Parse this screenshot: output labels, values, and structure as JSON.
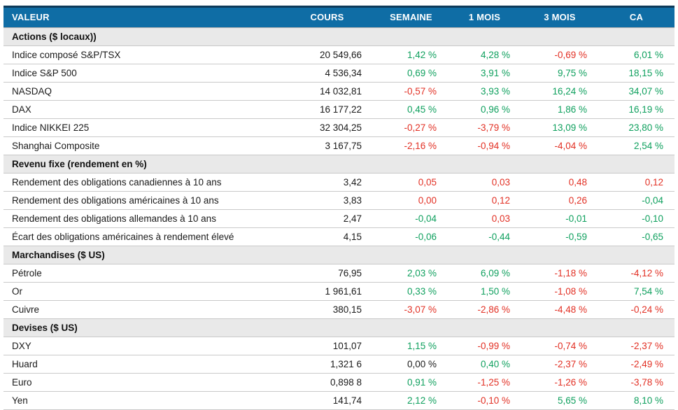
{
  "colors": {
    "header_background": "#0f6da5",
    "header_top_border": "#0d3a5a",
    "positive": "#0fa05e",
    "negative": "#e23024",
    "neutral": "#1a1a1a",
    "section_background": "#e9e9e9"
  },
  "table": {
    "columns": [
      "VALEUR",
      "COURS",
      "SEMAINE",
      "1 MOIS",
      "3 MOIS",
      "CA"
    ],
    "sections": [
      {
        "title": "Actions ($ locaux))",
        "rows": [
          {
            "label": "Indice composé S&P/TSX",
            "cours": "20 549,66",
            "cells": [
              [
                "1,42 %",
                "pos"
              ],
              [
                "4,28 %",
                "pos"
              ],
              [
                "-0,69 %",
                "neg"
              ],
              [
                "6,01 %",
                "pos"
              ]
            ]
          },
          {
            "label": "Indice S&P 500",
            "cours": "4 536,34",
            "cells": [
              [
                "0,69 %",
                "pos"
              ],
              [
                "3,91 %",
                "pos"
              ],
              [
                "9,75 %",
                "pos"
              ],
              [
                "18,15 %",
                "pos"
              ]
            ]
          },
          {
            "label": "NASDAQ",
            "cours": "14 032,81",
            "cells": [
              [
                "-0,57 %",
                "neg"
              ],
              [
                "3,93 %",
                "pos"
              ],
              [
                "16,24 %",
                "pos"
              ],
              [
                "34,07 %",
                "pos"
              ]
            ]
          },
          {
            "label": "DAX",
            "cours": "16 177,22",
            "cells": [
              [
                "0,45 %",
                "pos"
              ],
              [
                "0,96 %",
                "pos"
              ],
              [
                "1,86 %",
                "pos"
              ],
              [
                "16,19 %",
                "pos"
              ]
            ]
          },
          {
            "label": "Indice NIKKEI 225",
            "cours": "32 304,25",
            "cells": [
              [
                "-0,27 %",
                "neg"
              ],
              [
                "-3,79 %",
                "neg"
              ],
              [
                "13,09 %",
                "pos"
              ],
              [
                "23,80 %",
                "pos"
              ]
            ]
          },
          {
            "label": "Shanghai Composite",
            "cours": "3 167,75",
            "cells": [
              [
                "-2,16 %",
                "neg"
              ],
              [
                "-0,94 %",
                "neg"
              ],
              [
                "-4,04 %",
                "neg"
              ],
              [
                "2,54 %",
                "pos"
              ]
            ]
          }
        ]
      },
      {
        "title": "Revenu fixe (rendement en %)",
        "rows": [
          {
            "label": "Rendement des obligations canadiennes à 10 ans",
            "cours": "3,42",
            "cells": [
              [
                "0,05",
                "neg"
              ],
              [
                "0,03",
                "neg"
              ],
              [
                "0,48",
                "neg"
              ],
              [
                "0,12",
                "neg"
              ]
            ]
          },
          {
            "label": "Rendement des obligations américaines à 10 ans",
            "cours": "3,83",
            "cells": [
              [
                "0,00",
                "neg"
              ],
              [
                "0,12",
                "neg"
              ],
              [
                "0,26",
                "neg"
              ],
              [
                "-0,04",
                "pos"
              ]
            ]
          },
          {
            "label": "Rendement des obligations allemandes à 10 ans",
            "cours": "2,47",
            "cells": [
              [
                "-0,04",
                "pos"
              ],
              [
                "0,03",
                "neg"
              ],
              [
                "-0,01",
                "pos"
              ],
              [
                "-0,10",
                "pos"
              ]
            ]
          },
          {
            "label": "Écart des obligations américaines à rendement élevé",
            "cours": "4,15",
            "cells": [
              [
                "-0,06",
                "pos"
              ],
              [
                "-0,44",
                "pos"
              ],
              [
                "-0,59",
                "pos"
              ],
              [
                "-0,65",
                "pos"
              ]
            ]
          }
        ]
      },
      {
        "title": "Marchandises ($ US)",
        "rows": [
          {
            "label": "Pétrole",
            "cours": "76,95",
            "cells": [
              [
                "2,03 %",
                "pos"
              ],
              [
                "6,09 %",
                "pos"
              ],
              [
                "-1,18 %",
                "neg"
              ],
              [
                "-4,12 %",
                "neg"
              ]
            ]
          },
          {
            "label": "Or",
            "cours": "1 961,61",
            "cells": [
              [
                "0,33 %",
                "pos"
              ],
              [
                "1,50 %",
                "pos"
              ],
              [
                "-1,08 %",
                "neg"
              ],
              [
                "7,54 %",
                "pos"
              ]
            ]
          },
          {
            "label": "Cuivre",
            "cours": "380,15",
            "cells": [
              [
                "-3,07 %",
                "neg"
              ],
              [
                "-2,86 %",
                "neg"
              ],
              [
                "-4,48 %",
                "neg"
              ],
              [
                "-0,24 %",
                "neg"
              ]
            ]
          }
        ]
      },
      {
        "title": "Devises ($ US)",
        "rows": [
          {
            "label": "DXY",
            "cours": "101,07",
            "cells": [
              [
                "1,15 %",
                "pos"
              ],
              [
                "-0,99 %",
                "neg"
              ],
              [
                "-0,74 %",
                "neg"
              ],
              [
                "-2,37 %",
                "neg"
              ]
            ]
          },
          {
            "label": "Huard",
            "cours": "1,321 6",
            "cells": [
              [
                "0,00 %",
                "neu"
              ],
              [
                "0,40 %",
                "pos"
              ],
              [
                "-2,37 %",
                "neg"
              ],
              [
                "-2,49 %",
                "neg"
              ]
            ]
          },
          {
            "label": "Euro",
            "cours": "0,898 8",
            "cells": [
              [
                "0,91 %",
                "pos"
              ],
              [
                "-1,25 %",
                "neg"
              ],
              [
                "-1,26 %",
                "neg"
              ],
              [
                "-3,78 %",
                "neg"
              ]
            ]
          },
          {
            "label": "Yen",
            "cours": "141,74",
            "cells": [
              [
                "2,12 %",
                "pos"
              ],
              [
                "-0,10 %",
                "neg"
              ],
              [
                "5,65 %",
                "pos"
              ],
              [
                "8,10 %",
                "pos"
              ]
            ]
          }
        ]
      }
    ]
  }
}
